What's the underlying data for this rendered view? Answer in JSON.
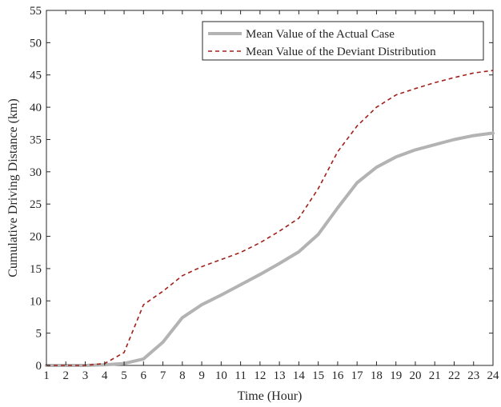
{
  "chart_data": {
    "type": "line",
    "title": "",
    "xlabel": "Time (Hour)",
    "ylabel": "Cumulative Driving Distance (km)",
    "xlim": [
      1,
      24
    ],
    "ylim": [
      0,
      55
    ],
    "xticks": [
      1,
      2,
      3,
      4,
      5,
      6,
      7,
      8,
      9,
      10,
      11,
      12,
      13,
      14,
      15,
      16,
      17,
      18,
      19,
      20,
      21,
      22,
      23,
      24
    ],
    "yticks": [
      0,
      5,
      10,
      15,
      20,
      25,
      30,
      35,
      40,
      45,
      50,
      55
    ],
    "grid": false,
    "legend_position": "top-right",
    "x": [
      1,
      2,
      3,
      4,
      5,
      6,
      7,
      8,
      9,
      10,
      11,
      12,
      13,
      14,
      15,
      16,
      17,
      18,
      19,
      20,
      21,
      22,
      23,
      24
    ],
    "series": [
      {
        "name": "Mean Value of the Actual Case",
        "style": "solid",
        "color": "#b3b3b3",
        "values": [
          0,
          0,
          0,
          0.1,
          0.3,
          1.0,
          3.6,
          7.4,
          9.4,
          10.9,
          12.5,
          14.1,
          15.8,
          17.6,
          20.3,
          24.4,
          28.3,
          30.7,
          32.3,
          33.4,
          34.2,
          35.0,
          35.6,
          36.0
        ]
      },
      {
        "name": "Mean Value of the Deviant Distribution",
        "style": "dashed",
        "color": "#a0201a",
        "values": [
          0,
          0,
          0,
          0.3,
          2.0,
          9.4,
          11.5,
          13.9,
          15.3,
          16.4,
          17.5,
          19.0,
          20.8,
          22.8,
          27.4,
          33.1,
          37.1,
          40.0,
          41.9,
          42.9,
          43.8,
          44.6,
          45.3,
          45.7
        ]
      }
    ]
  }
}
